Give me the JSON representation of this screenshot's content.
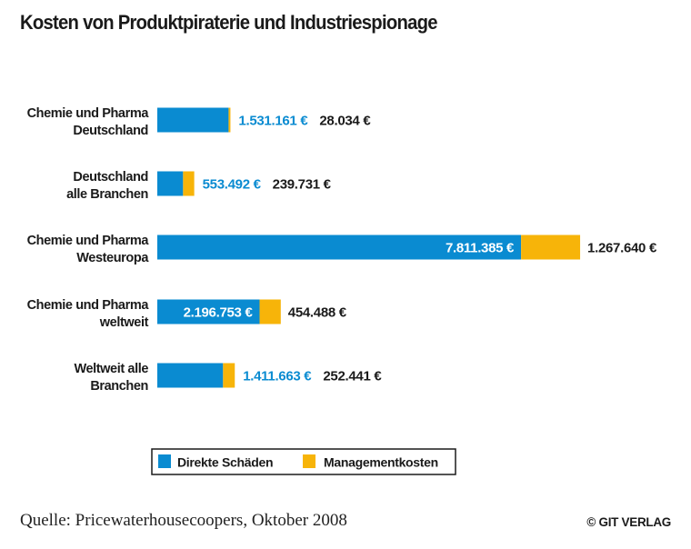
{
  "footer": {
    "source": "Quelle: Pricewaterhousecoopers, Oktober 2008",
    "credit": "© GIT VERLAG"
  },
  "chart_data": {
    "type": "bar",
    "orientation": "horizontal",
    "stacked": true,
    "title": "Kosten von Produktpiraterie und Industriespionage",
    "categories": [
      [
        "Chemie und Pharma",
        "Deutschland"
      ],
      [
        "Deutschland",
        "alle Branchen"
      ],
      [
        "Chemie und Pharma",
        "Westeuropa"
      ],
      [
        "Chemie und Pharma",
        "weltweit"
      ],
      [
        "Weltweit alle",
        "Branchen"
      ]
    ],
    "series": [
      {
        "name": "Direkte Schäden",
        "color": "#0a8bd1",
        "values": [
          1531161,
          553492,
          7811385,
          2196753,
          1411663
        ],
        "labels": [
          "1.531.161 €",
          "553.492 €",
          "7.811.385 €",
          "2.196.753 €",
          "1.411.663 €"
        ]
      },
      {
        "name": "Managementkosten",
        "color": "#f7b409",
        "values": [
          28034,
          239731,
          1267640,
          454488,
          252441
        ],
        "labels": [
          "28.034 €",
          "239.731 €",
          "1.267.640 €",
          "454.488 €",
          "252.441 €"
        ]
      }
    ],
    "label_inside_bar": [
      false,
      false,
      true,
      true,
      false
    ],
    "label_colors": {
      "outside_first": "#0a8bd1",
      "inside_first": "#ffffff",
      "second": "#1a1a1a"
    },
    "legend_position": "bottom",
    "grid": false,
    "axes_visible": false
  }
}
